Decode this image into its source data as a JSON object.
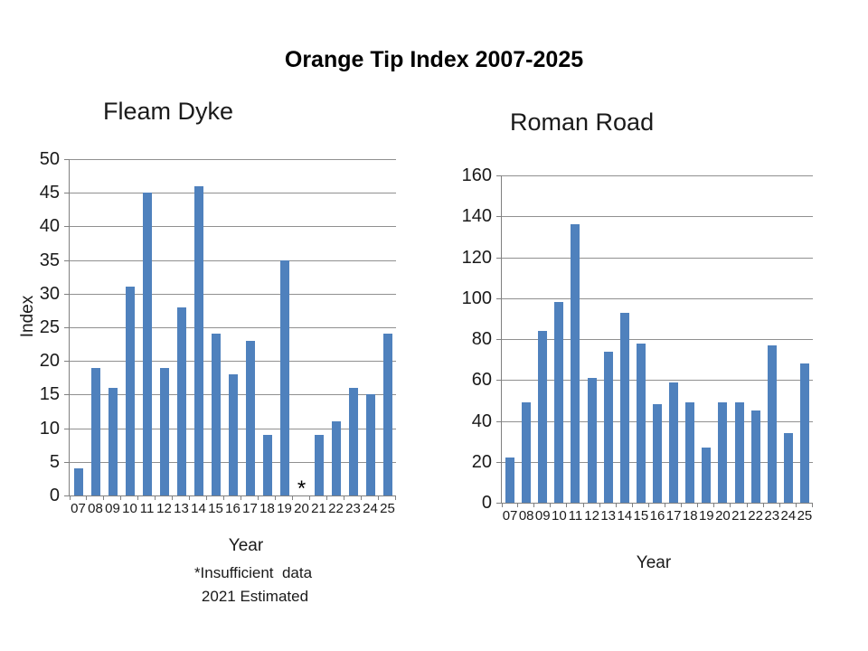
{
  "title": "Orange Tip Index 2007-2025",
  "footnote": {
    "line1": "*Insufficient  data",
    "line2": "2021 Estimated"
  },
  "colors": {
    "bar": "#4f81bd",
    "gridline": "#909090",
    "axis": "#808080",
    "text": "#1a1a1a"
  },
  "chart_data": [
    {
      "type": "bar",
      "title": "Fleam Dyke",
      "xlabel": "Year",
      "ylabel": "Index",
      "categories": [
        "07",
        "08",
        "09",
        "10",
        "11",
        "12",
        "13",
        "14",
        "15",
        "16",
        "17",
        "18",
        "19",
        "20",
        "21",
        "22",
        "23",
        "24",
        "25"
      ],
      "values": [
        4,
        19,
        16,
        31,
        45,
        19,
        28,
        46,
        24,
        18,
        23,
        9,
        35,
        null,
        9,
        11,
        16,
        15,
        24
      ],
      "ylim": [
        0,
        50
      ],
      "ytick_step": 5,
      "grid": true,
      "legend": false,
      "missing_marker": "*",
      "missing_category": "20",
      "bar_color": "#4f81bd"
    },
    {
      "type": "bar",
      "title": "Roman Road",
      "xlabel": "Year",
      "ylabel": "",
      "categories": [
        "07",
        "08",
        "09",
        "10",
        "11",
        "12",
        "13",
        "14",
        "15",
        "16",
        "17",
        "18",
        "19",
        "20",
        "21",
        "22",
        "23",
        "24",
        "25"
      ],
      "values": [
        22,
        49,
        84,
        98,
        136,
        61,
        74,
        93,
        78,
        48,
        59,
        49,
        27,
        49,
        49,
        45,
        77,
        34,
        68
      ],
      "ylim": [
        0,
        160
      ],
      "ytick_step": 20,
      "grid": true,
      "legend": false,
      "bar_color": "#4f81bd"
    }
  ]
}
